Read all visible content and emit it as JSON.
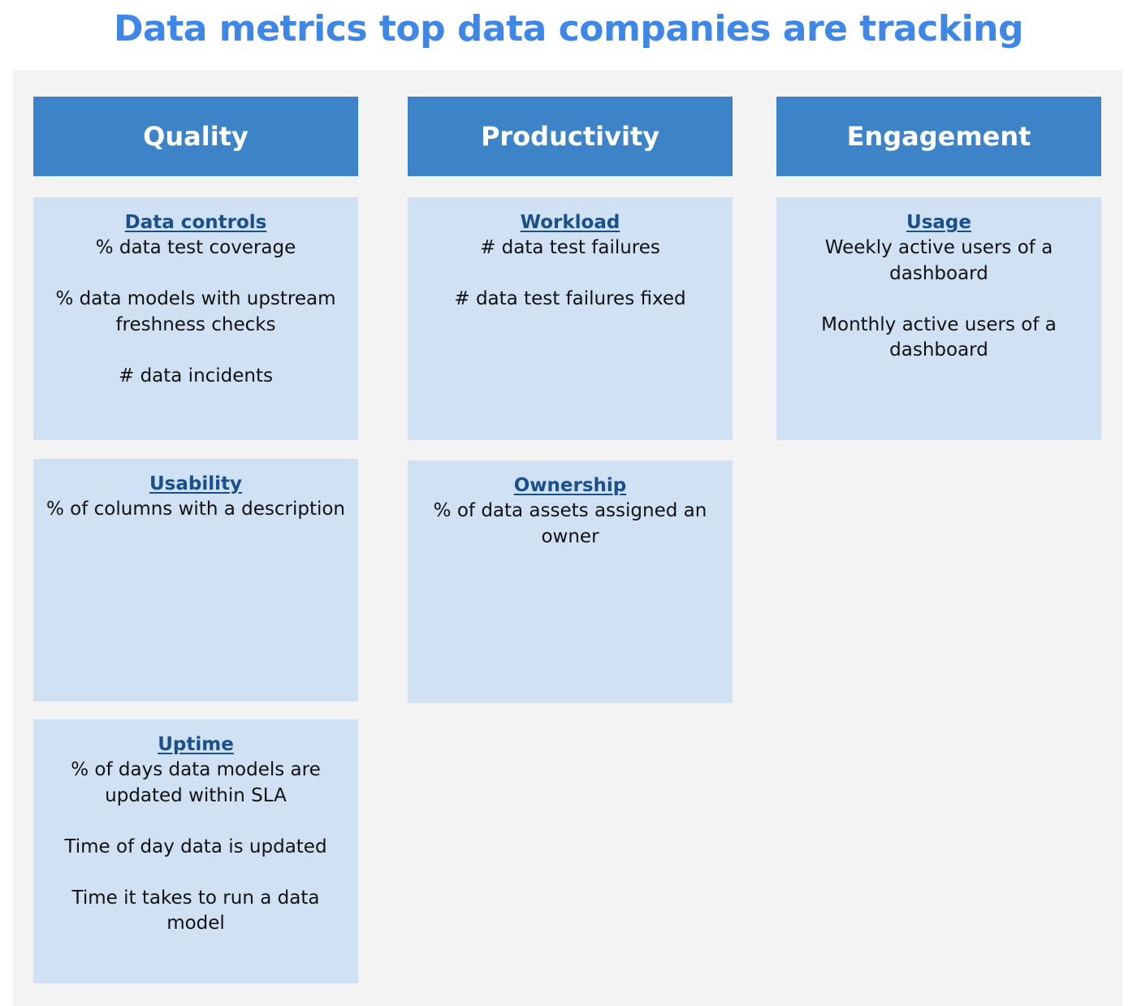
{
  "title": "Data metrics top data companies are tracking",
  "columns": [
    {
      "header": "Quality",
      "cards": [
        {
          "title": "Data controls",
          "metrics": [
            "% data test coverage",
            "% data models with upstream freshness checks",
            "# data incidents"
          ]
        },
        {
          "title": "Usability",
          "metrics": [
            "% of columns with a description"
          ]
        },
        {
          "title": "Uptime",
          "metrics": [
            "% of days data models are updated within SLA",
            "Time of day data is updated",
            "Time it takes to run a data model"
          ]
        }
      ]
    },
    {
      "header": "Productivity",
      "cards": [
        {
          "title": "Workload",
          "metrics": [
            "# data test failures",
            "# data test failures fixed"
          ]
        },
        {
          "title": "Ownership",
          "metrics": [
            "% of data assets assigned an owner"
          ]
        }
      ]
    },
    {
      "header": "Engagement",
      "cards": [
        {
          "title": "Usage",
          "metrics": [
            "Weekly active users of a dashboard",
            "Monthly active users of a dashboard"
          ]
        }
      ]
    }
  ],
  "colors": {
    "title": "#3f87e6",
    "header_bg": "#3c84c7",
    "card_bg": "#cfe1f3",
    "card_title": "#1b4f8a",
    "panel_bg": "#f3f3f3"
  }
}
